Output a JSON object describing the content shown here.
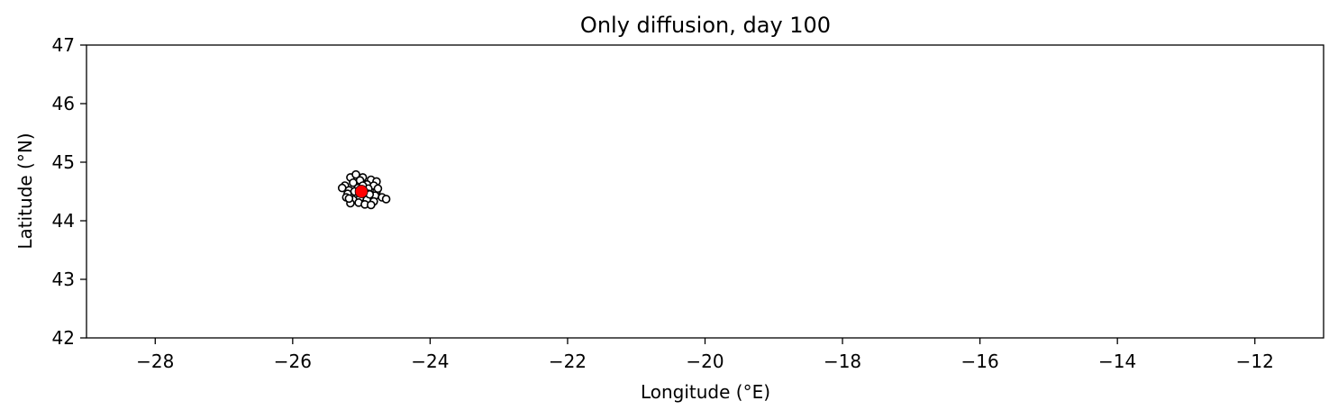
{
  "chart_data": {
    "type": "scatter",
    "title": "Only diffusion, day 100",
    "xlabel": "Longitude (°E)",
    "ylabel": "Latitude (°N)",
    "xlim": [
      -29,
      -11
    ],
    "ylim": [
      42,
      47
    ],
    "xticks": [
      -28,
      -26,
      -24,
      -22,
      -20,
      -18,
      -16,
      -14,
      -12
    ],
    "xtick_labels": [
      "−28",
      "−26",
      "−24",
      "−22",
      "−20",
      "−18",
      "−16",
      "−14",
      "−12"
    ],
    "yticks": [
      42,
      43,
      44,
      45,
      46,
      47
    ],
    "ytick_labels": [
      "42",
      "43",
      "44",
      "45",
      "46",
      "47"
    ],
    "grid": false,
    "series": [
      {
        "marker": "white-circle-black-edge",
        "color": "#ffffff",
        "edgecolor": "#000000",
        "x": [
          -25.16,
          -25.08,
          -24.98,
          -24.86,
          -24.78,
          -25.24,
          -25.12,
          -25.02,
          -24.92,
          -24.82,
          -25.28,
          -25.18,
          -25.05,
          -24.9,
          -24.78,
          -25.2,
          -25.1,
          -25.0,
          -24.9,
          -24.8,
          -24.7,
          -25.22,
          -25.12,
          -25.02,
          -24.92,
          -24.82,
          -25.16,
          -25.04,
          -24.95,
          -24.86,
          -25.1,
          -24.98,
          -24.88,
          -25.18,
          -24.76,
          -24.64
        ],
        "y": [
          44.74,
          44.79,
          44.74,
          44.7,
          44.67,
          44.6,
          44.65,
          44.69,
          44.62,
          44.6,
          44.56,
          44.52,
          44.56,
          44.55,
          44.5,
          44.46,
          44.43,
          44.47,
          44.46,
          44.43,
          44.4,
          44.4,
          44.36,
          44.39,
          44.36,
          44.33,
          44.3,
          44.31,
          44.28,
          44.27,
          44.5,
          44.6,
          44.45,
          44.38,
          44.55,
          44.37
        ]
      },
      {
        "marker": "red-circle",
        "color": "#ff0000",
        "edgecolor": "#000000",
        "x": [
          -25.0
        ],
        "y": [
          44.5
        ]
      }
    ]
  }
}
